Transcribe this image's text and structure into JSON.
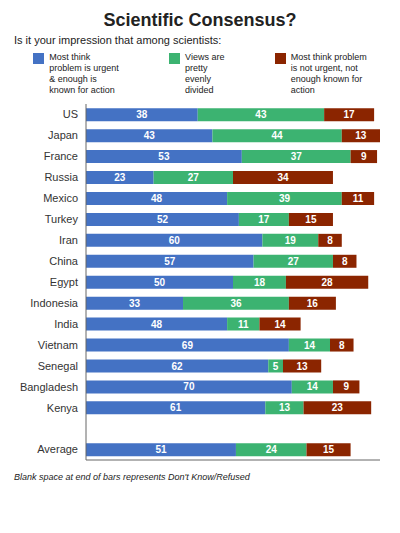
{
  "chart_data": {
    "type": "bar",
    "orientation": "horizontal",
    "stacked": true,
    "title": "Scientific Consensus?",
    "subtitle": "Is it your impression that among scientists:",
    "footnote": "Blank space at end of bars represents Don't Know/Refused",
    "categories": [
      "US",
      "Japan",
      "France",
      "Russia",
      "Mexico",
      "Turkey",
      "Iran",
      "China",
      "Egypt",
      "Indonesia",
      "India",
      "Vietnam",
      "Senegal",
      "Bangladesh",
      "Kenya",
      null,
      "Average"
    ],
    "series": [
      {
        "name": "Most think\nproblem is urgent\n& enough is\nknown for action",
        "color": "#4472C4",
        "values": [
          38,
          43,
          53,
          23,
          48,
          52,
          60,
          57,
          50,
          33,
          48,
          69,
          62,
          70,
          61,
          null,
          51
        ]
      },
      {
        "name": "Views are\npretty\nevenly\ndivided",
        "color": "#3CB371",
        "values": [
          43,
          44,
          37,
          27,
          39,
          17,
          19,
          27,
          18,
          36,
          11,
          14,
          5,
          14,
          13,
          null,
          24
        ]
      },
      {
        "name": "Most think problem\nis not urgent, not\nenough known for\naction",
        "color": "#8B2500",
        "values": [
          17,
          13,
          9,
          34,
          11,
          15,
          8,
          8,
          28,
          16,
          14,
          8,
          13,
          9,
          23,
          null,
          15
        ]
      }
    ],
    "xlim": [
      0,
      100
    ],
    "data_labels": true,
    "tick_labels": "y",
    "grid": false,
    "legend": "top"
  }
}
